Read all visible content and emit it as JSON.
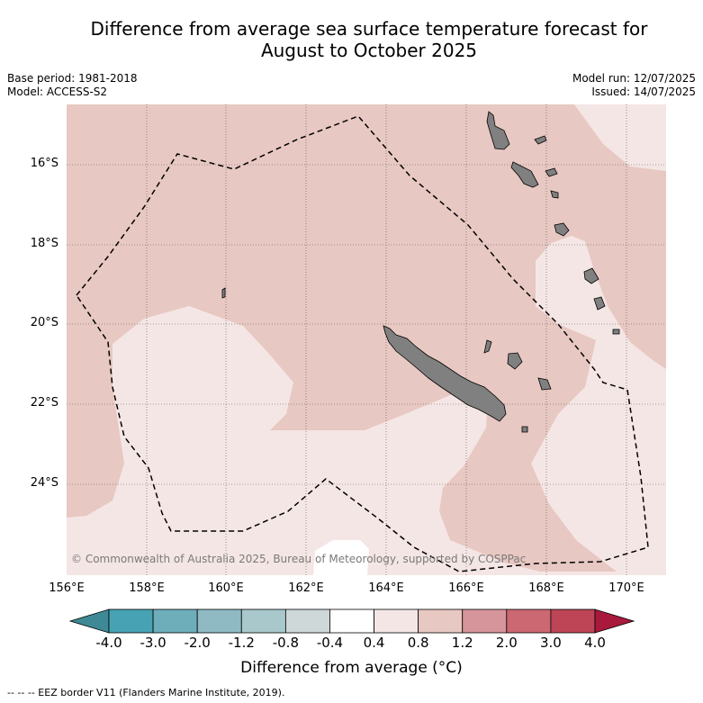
{
  "title_line1": "Difference from average sea surface temperature forecast for",
  "title_line2": "August to October 2025",
  "base_period": "Base period: 1981-2018",
  "model": "Model: ACCESS-S2",
  "model_run": "Model run: 12/07/2025",
  "issued": "Issued: 14/07/2025",
  "lat_labels": [
    "16°S",
    "18°S",
    "20°S",
    "22°S",
    "24°S"
  ],
  "lon_labels": [
    "156°E",
    "158°E",
    "160°E",
    "162°E",
    "164°E",
    "166°E",
    "168°E",
    "170°E"
  ],
  "copyright": "© Commonwealth of Australia 2025, Bureau of Meteorology, supported by COSPPac",
  "colorbar": {
    "ticks": [
      "-4.0",
      "-3.0",
      "-2.0",
      "-1.2",
      "-0.8",
      "-0.4",
      "0.4",
      "0.8",
      "1.2",
      "2.0",
      "3.0",
      "4.0"
    ],
    "colors": [
      "#3f8996",
      "#47a3b4",
      "#6eaebb",
      "#8fbac4",
      "#a9c8cc",
      "#cfd8d8",
      "#ffffff",
      "#f4e6e4",
      "#e8c8c2",
      "#d6949b",
      "#cb6872",
      "#bd4556",
      "#a8193c"
    ],
    "label": "Difference from average (°C)"
  },
  "legend_footnote": "-- -- -- EEZ border V11 (Flanders Marine Institute, 2019).",
  "colors": {
    "warm_0_4_to_0_8": "#f4e6e4",
    "warm_0_8_to_1_2": "#e8c8c2",
    "white": "#ffffff",
    "land": "#808080"
  }
}
